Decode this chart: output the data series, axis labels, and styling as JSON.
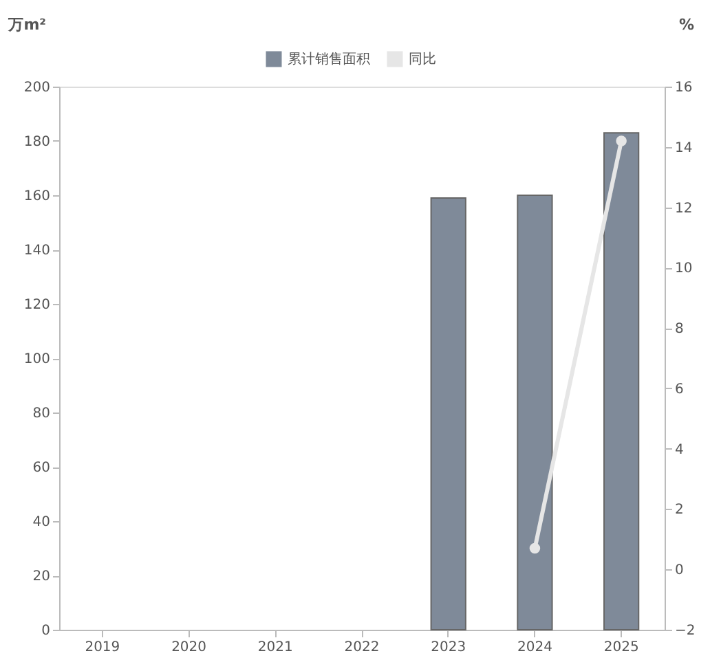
{
  "chart_data": {
    "type": "bar",
    "categories": [
      "2019",
      "2020",
      "2021",
      "2022",
      "2023",
      "2024",
      "2025"
    ],
    "ylabel": "万m²",
    "y2label": "%",
    "series": [
      {
        "name": "累计销售面积",
        "color": "#7f8a99",
        "values": [
          null,
          null,
          null,
          null,
          159,
          160,
          183
        ]
      },
      {
        "name": "同比",
        "type": "line",
        "axis": "y2",
        "color": "#e6e6e6",
        "marker": "circle",
        "values": [
          null,
          null,
          null,
          null,
          null,
          0.7,
          14.2
        ]
      }
    ],
    "ylim": [
      0,
      200
    ],
    "yticks": [
      0,
      20,
      40,
      60,
      80,
      100,
      120,
      140,
      160,
      180,
      200
    ],
    "y2lim": [
      -2,
      16
    ],
    "y2ticks": [
      -2,
      0,
      2,
      4,
      6,
      8,
      10,
      12,
      14,
      16
    ],
    "legend": "top",
    "grid": false
  }
}
